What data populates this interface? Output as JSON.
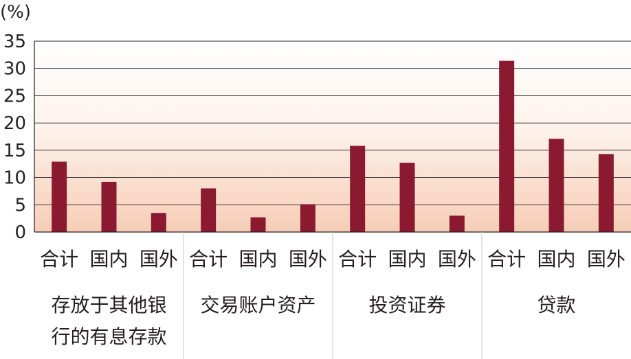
{
  "chart_data": {
    "type": "bar",
    "unit_label": "(%)",
    "ylim": [
      0,
      35
    ],
    "yticks": [
      "0",
      "5",
      "10",
      "15",
      "20",
      "25",
      "30",
      "35"
    ],
    "grid": true,
    "bar_color": "#8b1a30",
    "groups": [
      {
        "label_lines": [
          "存放于其他银",
          "行的有息存款"
        ],
        "categories": [
          "合计",
          "国内",
          "国外"
        ],
        "values": [
          12.9,
          9.2,
          3.5
        ]
      },
      {
        "label_lines": [
          "交易账户资产"
        ],
        "categories": [
          "合计",
          "国内",
          "国外"
        ],
        "values": [
          8.0,
          2.7,
          5.1
        ]
      },
      {
        "label_lines": [
          "投资证券"
        ],
        "categories": [
          "合计",
          "国内",
          "国外"
        ],
        "values": [
          15.8,
          12.7,
          3.0
        ]
      },
      {
        "label_lines": [
          "贷款"
        ],
        "categories": [
          "合计",
          "国内",
          "国外"
        ],
        "values": [
          31.4,
          17.1,
          14.3
        ]
      }
    ]
  }
}
